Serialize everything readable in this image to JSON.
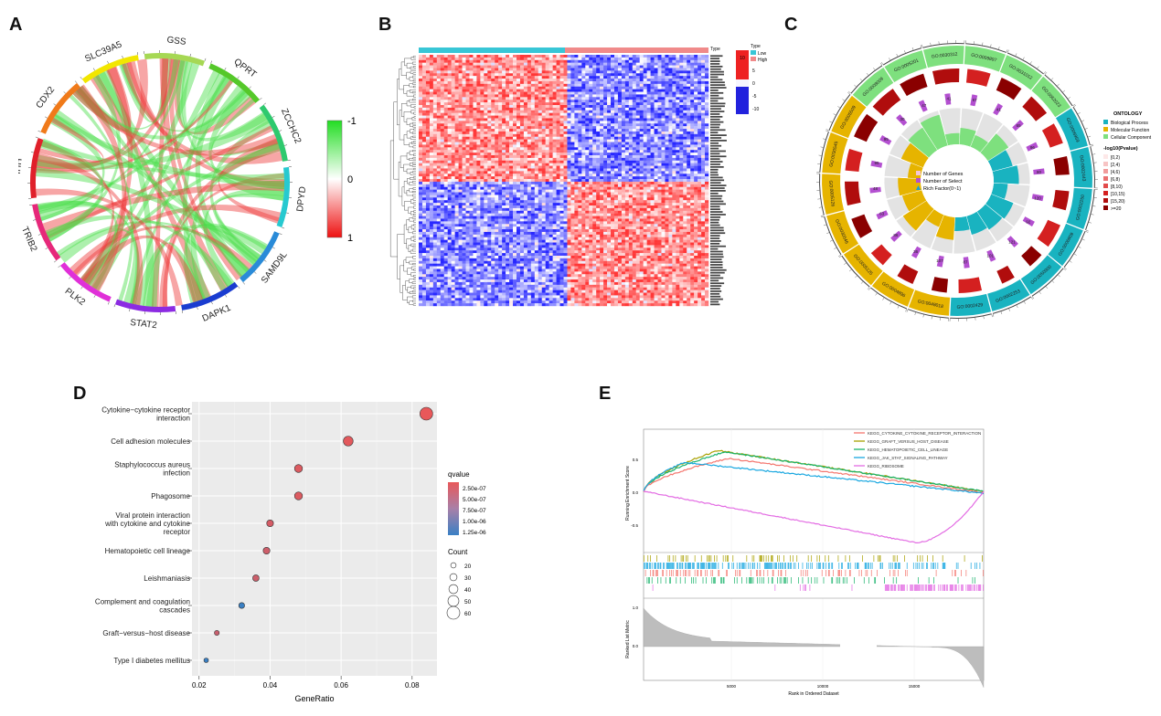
{
  "panels": {
    "A": {
      "letter": "A",
      "genes": [
        "SLC39A5",
        "GSS",
        "QPRT",
        "ZCCHC2",
        "DPYD",
        "SAMD9L",
        "DAPK1",
        "STAT2",
        "PLK2",
        "TRIB2",
        "IHH",
        "CDX2"
      ],
      "colorbar_ticks": [
        "-1",
        "0",
        "1"
      ],
      "gene_colors": [
        "#f2e600",
        "#a6d854",
        "#55c82a",
        "#2ec96e",
        "#27c9d0",
        "#2a8bd8",
        "#1a3cd0",
        "#8c2be2",
        "#e030d8",
        "#e6287a",
        "#e0202a",
        "#f07a1a"
      ]
    },
    "B": {
      "letter": "B",
      "legend_title": "Type",
      "legend_items": [
        "Low",
        "High"
      ],
      "legend_colors": [
        "#38c6d6",
        "#f08a8a"
      ],
      "colorbar_ticks": [
        "10",
        "5",
        "0",
        "-5",
        "-10"
      ]
    },
    "C": {
      "letter": "C",
      "legend": {
        "ontology_title": "ONTOLOGY",
        "ontology_items": [
          "Biological Process",
          "Molecular Function",
          "Cellular Component"
        ],
        "ontology_colors": [
          "#19b3c0",
          "#e6b400",
          "#7ee07e"
        ],
        "pvalue_title": "-log10(Pvalue)",
        "pvalue_items": [
          "[0,2)",
          "[2,4)",
          "[4,6)",
          "[6,8)",
          "[8,10)",
          "[10,15)",
          "[15,20)",
          ">=20"
        ],
        "pvalue_colors": [
          "#fde8e8",
          "#f7c4c4",
          "#f19c9c",
          "#ea7070",
          "#e24a4a",
          "#d42020",
          "#b00d0d",
          "#8a0000"
        ]
      },
      "center_legend": [
        "Number of Genes",
        "Number of Select",
        "Rich Factor(0~1)"
      ],
      "center_legend_colors": [
        "#f5c6d6",
        "#b34fd0",
        "#1a9fd6"
      ],
      "go_terms": [
        {
          "id": "GO:0005201",
          "cat": "CC",
          "count": "47"
        },
        {
          "id": "GO:0030312",
          "cat": "CC",
          "count": "41"
        },
        {
          "id": "GO:0009897",
          "cat": "CC",
          "count": "67"
        },
        {
          "id": "GO:0031012",
          "cat": "CC",
          "count": "41"
        },
        {
          "id": "GO:0062023",
          "cat": "CC",
          "count": "65"
        },
        {
          "id": "GO:0006959",
          "cat": "BP",
          "count": "96"
        },
        {
          "id": "GO:0002443",
          "cat": "BP",
          "count": "80"
        },
        {
          "id": "GO:0002250",
          "cat": "BP",
          "count": "120"
        },
        {
          "id": "GO:0006909",
          "cat": "BP",
          "count": "92"
        },
        {
          "id": "GO:0050900",
          "cat": "BP",
          "count": "121"
        },
        {
          "id": "GO:0002253",
          "cat": "BP",
          "count": "101"
        },
        {
          "id": "GO:0002429",
          "cat": "BP",
          "count": "87"
        },
        {
          "id": "GO:0048018",
          "cat": "MF",
          "count": "107"
        },
        {
          "id": "GO:0004896",
          "cat": "MF",
          "count": "36"
        },
        {
          "id": "GO:0005125",
          "cat": "MF",
          "count": "86"
        },
        {
          "id": "GO:0030546",
          "cat": "MF",
          "count": "63"
        },
        {
          "id": "GO:0005126",
          "cat": "MF",
          "count": "48"
        },
        {
          "id": "GO:0030545",
          "cat": "MF",
          "count": "95"
        },
        {
          "id": "GO:0005509",
          "cat": "MF",
          "count": "95"
        },
        {
          "id": "GO:0008009",
          "cat": "CC",
          "count": "30"
        }
      ]
    },
    "D": {
      "letter": "D",
      "xlabel": "GeneRatio",
      "legend_q_title": "qvalue",
      "legend_q_ticks": [
        "2.50e-07",
        "5.00e-07",
        "7.50e-07",
        "1.00e-06",
        "1.25e-06"
      ],
      "legend_count_title": "Count",
      "legend_count_ticks": [
        "20",
        "30",
        "40",
        "50",
        "60"
      ]
    },
    "E": {
      "letter": "E",
      "ylabel_top": "Running Enrichment Score",
      "ylabel_bottom": "Ranked List Metric",
      "xlabel": "Rank in Ordered Dataset",
      "x_ticks": [
        "5000",
        "10000",
        "15000"
      ],
      "legend": [
        {
          "name": "KEGG_CYTOKINE_CYTOKINE_RECEPTOR_INTERACTION",
          "color": "#f4766e"
        },
        {
          "name": "KEGG_GRAFT_VERSUS_HOST_DISEASE",
          "color": "#a8a000"
        },
        {
          "name": "KEGG_HEMATOPOIETIC_CELL_LINEAGE",
          "color": "#19b36b"
        },
        {
          "name": "KEGG_JAK_STAT_SIGNALING_PATHWAY",
          "color": "#19a7e0"
        },
        {
          "name": "KEGG_RIBOSOME",
          "color": "#e36ce3"
        }
      ],
      "y_ticks_top": [
        "0.5",
        "0.0",
        "-0.5"
      ],
      "y_ticks_bottom": [
        "1.0",
        "0.0"
      ]
    }
  },
  "chart_data": [
    {
      "type": "scatter",
      "title": "",
      "xlabel": "GeneRatio",
      "ylabel": "",
      "xlim": [
        0.018,
        0.087
      ],
      "x_ticks": [
        "0.02",
        "0.04",
        "0.06",
        "0.08"
      ],
      "categories": [
        "Cytokine−cytokine receptor\ninteraction",
        "Cell adhesion molecules",
        "Staphylococcus aureus\ninfection",
        "Phagosome",
        "Viral protein interaction\nwith cytokine and cytokine\nreceptor",
        "Hematopoietic cell lineage",
        "Leishmaniasis",
        "Complement and coagulation\ncascades",
        "Graft−versus−host disease",
        "Type I diabetes mellitus"
      ],
      "series": [
        {
          "x": [
            0.084,
            0.062,
            0.048,
            0.048,
            0.04,
            0.039,
            0.036,
            0.032,
            0.025,
            0.022
          ],
          "count": [
            60,
            44,
            34,
            34,
            28,
            28,
            26,
            23,
            18,
            16
          ],
          "qvalue": [
            1e-08,
            5e-08,
            1e-07,
            1e-07,
            1.5e-07,
            2e-07,
            2.2e-07,
            1.3e-06,
            2.5e-07,
            1.3e-06
          ]
        }
      ]
    }
  ]
}
